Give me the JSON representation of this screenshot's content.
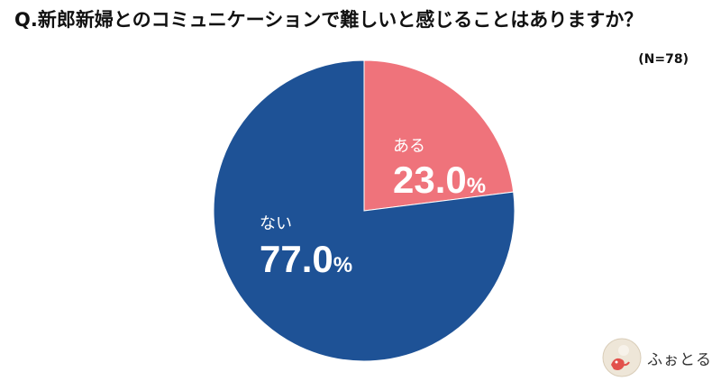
{
  "title": "Q.新郎新婦とのコミュニケーションで難しいと感じることはありますか？",
  "note": "(N=78)",
  "logo": {
    "text": "ふぉとる",
    "icon": "logo-mark-icon"
  },
  "colors": {
    "aru": "#ef737b",
    "nai": "#1e5296",
    "label": "#ffffff"
  },
  "chart_data": {
    "type": "pie",
    "title": "Q.新郎新婦とのコミュニケーションで難しいと感じることはありますか？",
    "slices": [
      {
        "label": "ある",
        "value": 23.0,
        "display": "23.0",
        "color": "#ef737b"
      },
      {
        "label": "ない",
        "value": 77.0,
        "display": "77.0",
        "color": "#1e5296"
      }
    ],
    "unit": "%",
    "start": "top",
    "direction": "clockwise",
    "legend": "none"
  }
}
